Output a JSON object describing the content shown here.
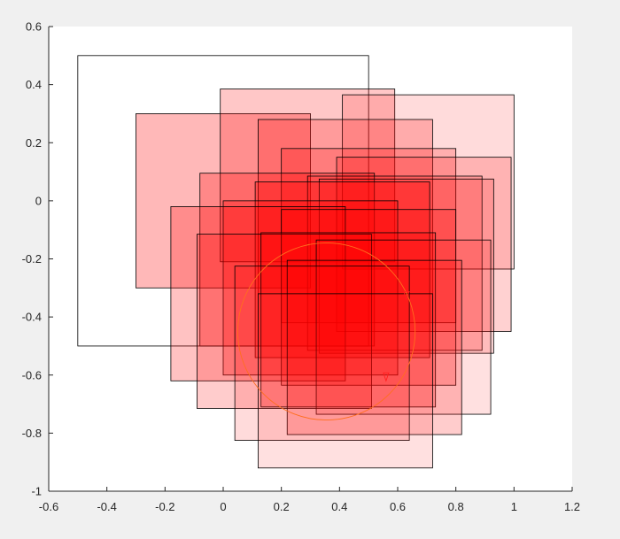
{
  "figure": {
    "background": "#f0f0f0",
    "axes_background": "#ffffff"
  },
  "chart_data": {
    "type": "scatter",
    "title": "",
    "xlabel": "",
    "ylabel": "",
    "xlim": [
      -0.6,
      1.2
    ],
    "ylim": [
      -1,
      0.6
    ],
    "grid": false,
    "x_ticks": [
      -0.6,
      -0.4,
      -0.2,
      0,
      0.2,
      0.4,
      0.6,
      0.8,
      1,
      1.2
    ],
    "x_tick_labels": [
      "-0.6",
      "-0.4",
      "-0.2",
      "0",
      "0.2",
      "0.4",
      "0.6",
      "0.8",
      "1",
      "1.2"
    ],
    "y_ticks": [
      -1,
      -0.8,
      -0.6,
      -0.4,
      -0.2,
      0,
      0.2,
      0.4,
      0.6
    ],
    "y_tick_labels": [
      "-1",
      "-0.8",
      "-0.6",
      "-0.4",
      "-0.2",
      "0",
      "0.2",
      "0.4",
      "0.6"
    ],
    "fill_color": "#ff0000",
    "edge_color": "#000000",
    "rectangles": [
      {
        "x0": -0.5,
        "x1": 0.5,
        "y0": -0.5,
        "y1": 0.5,
        "filled": false
      },
      {
        "x0": -0.3,
        "x1": 0.3,
        "y0": -0.3,
        "y1": 0.3,
        "filled": true,
        "opacity": 0.28
      },
      {
        "x0": -0.01,
        "x1": 0.59,
        "y0": -0.21,
        "y1": 0.385,
        "filled": true,
        "opacity": 0.22
      },
      {
        "x0": 0.41,
        "x1": 1.0,
        "y0": -0.235,
        "y1": 0.365,
        "filled": true,
        "opacity": 0.14
      },
      {
        "x0": 0.12,
        "x1": 0.72,
        "y0": -0.32,
        "y1": 0.28,
        "filled": true,
        "opacity": 0.22
      },
      {
        "x0": 0.2,
        "x1": 0.8,
        "y0": -0.42,
        "y1": 0.18,
        "filled": true,
        "opacity": 0.2
      },
      {
        "x0": 0.39,
        "x1": 0.99,
        "y0": -0.45,
        "y1": 0.15,
        "filled": true,
        "opacity": 0.18
      },
      {
        "x0": -0.08,
        "x1": 0.52,
        "y0": -0.5,
        "y1": 0.095,
        "filled": true,
        "opacity": 0.26
      },
      {
        "x0": 0.29,
        "x1": 0.89,
        "y0": -0.515,
        "y1": 0.085,
        "filled": true,
        "opacity": 0.16
      },
      {
        "x0": 0.33,
        "x1": 0.93,
        "y0": -0.525,
        "y1": 0.075,
        "filled": true,
        "opacity": 0.16
      },
      {
        "x0": 0.11,
        "x1": 0.71,
        "y0": -0.54,
        "y1": 0.065,
        "filled": true,
        "opacity": 0.28
      },
      {
        "x0": 0.0,
        "x1": 0.6,
        "y0": -0.6,
        "y1": 0.0,
        "filled": true,
        "opacity": 0.24
      },
      {
        "x0": -0.18,
        "x1": 0.42,
        "y0": -0.62,
        "y1": -0.02,
        "filled": true,
        "opacity": 0.24
      },
      {
        "x0": 0.2,
        "x1": 0.8,
        "y0": -0.635,
        "y1": -0.03,
        "filled": true,
        "opacity": 0.2
      },
      {
        "x0": -0.09,
        "x1": 0.51,
        "y0": -0.715,
        "y1": -0.115,
        "filled": true,
        "opacity": 0.2
      },
      {
        "x0": 0.13,
        "x1": 0.73,
        "y0": -0.71,
        "y1": -0.11,
        "filled": true,
        "opacity": 0.22
      },
      {
        "x0": 0.32,
        "x1": 0.92,
        "y0": -0.735,
        "y1": -0.135,
        "filled": true,
        "opacity": 0.12
      },
      {
        "x0": 0.22,
        "x1": 0.82,
        "y0": -0.805,
        "y1": -0.205,
        "filled": true,
        "opacity": 0.2
      },
      {
        "x0": 0.04,
        "x1": 0.64,
        "y0": -0.825,
        "y1": -0.225,
        "filled": true,
        "opacity": 0.14
      },
      {
        "x0": 0.12,
        "x1": 0.72,
        "y0": -0.92,
        "y1": -0.32,
        "filled": true,
        "opacity": 0.12
      }
    ],
    "circle": {
      "cx": 0.355,
      "cy": -0.45,
      "r": 0.305,
      "color": "#ff6e1e"
    },
    "arrowheads": [
      {
        "x": 0.63,
        "y": -0.34,
        "direction": "down"
      },
      {
        "x": 0.56,
        "y": -0.62,
        "direction": "down"
      }
    ]
  }
}
